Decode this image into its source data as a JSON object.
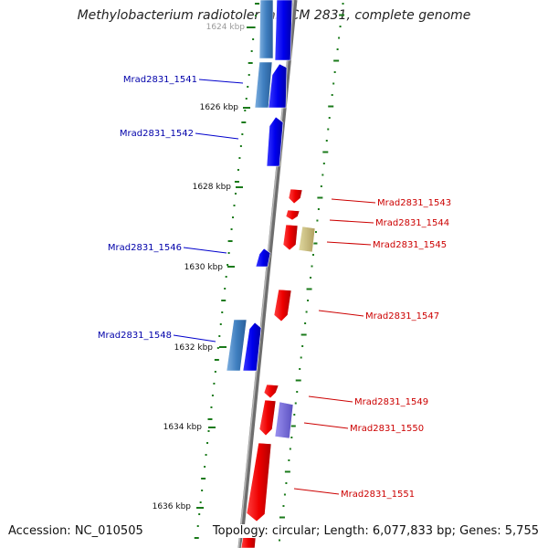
{
  "title": "Methylobacterium radiotolerans JCM 2831, complete genome",
  "accession_text": "Accession: NC_010505",
  "topology_text": "Topology: circular; Length: 6,077,833 bp; Genes: 5,755",
  "ticks": [
    "1624 kbp",
    "1626 kbp",
    "1628 kbp",
    "1630 kbp",
    "1632 kbp",
    "1634 kbp",
    "1636 kbp"
  ],
  "left_genes": [
    "Mrad2831_1541",
    "Mrad2831_1542",
    "Mrad2831_1546",
    "Mrad2831_1548"
  ],
  "right_genes": [
    "Mrad2831_1543",
    "Mrad2831_1544",
    "Mrad2831_1545",
    "Mrad2831_1547",
    "Mrad2831_1549",
    "Mrad2831_1550",
    "Mrad2831_1551"
  ],
  "colors": {
    "forward_strand": "#0000ee",
    "reverse_strand": "#ee0000",
    "left_label": "#0000aa",
    "right_label": "#cc0000",
    "gc_dash": "#1a7a1a",
    "backbone": "#8a8a8a"
  }
}
